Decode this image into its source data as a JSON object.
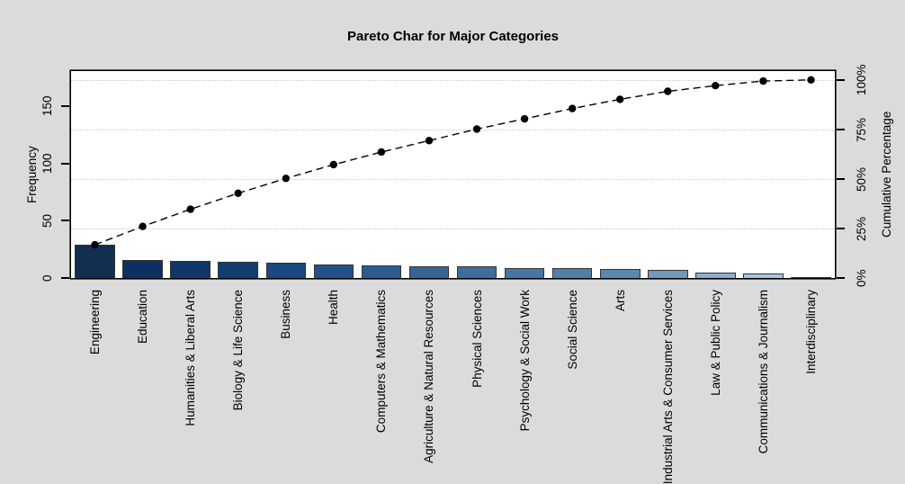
{
  "title": "Pareto Char for Major Categories",
  "axes": {
    "left": {
      "label": "Frequency",
      "ticks": [
        "0",
        "50",
        "100",
        "150"
      ],
      "tick_values": [
        0,
        50,
        100,
        150
      ]
    },
    "right": {
      "label": "Cumulative Percentage",
      "ticks": [
        "0%",
        "25%",
        "50%",
        "75%",
        "100%"
      ],
      "tick_values": [
        0,
        25,
        50,
        75,
        100
      ]
    }
  },
  "chart_data": {
    "type": "pareto (bar + cumulative line)",
    "title": "Pareto Char for Major Categories",
    "categories": [
      "Engineering",
      "Education",
      "Humanities & Liberal Arts",
      "Biology & Life Science",
      "Business",
      "Health",
      "Computers & Mathematics",
      "Agriculture & Natural Resources",
      "Physical Sciences",
      "Psychology & Social Work",
      "Social Science",
      "Arts",
      "Industrial Arts & Consumer Services",
      "Law & Public Policy",
      "Communications & Journalism",
      "Interdisciplinary"
    ],
    "values": [
      29,
      16,
      15,
      14,
      13,
      12,
      11,
      10,
      10,
      9,
      9,
      8,
      7,
      5,
      4,
      1
    ],
    "cumulative_counts": [
      29,
      45,
      60,
      74,
      87,
      99,
      110,
      120,
      130,
      139,
      148,
      156,
      163,
      168,
      172,
      173
    ],
    "cumulative_percent": [
      16.8,
      26.0,
      34.7,
      42.8,
      50.3,
      57.2,
      63.6,
      69.4,
      75.1,
      80.3,
      85.5,
      90.2,
      94.2,
      97.1,
      99.4,
      100.0
    ],
    "total": 173,
    "ylabel_left": "Frequency",
    "ylabel_right": "Cumulative Percentage",
    "ylim_left": [
      0,
      180.7
    ],
    "grid": "dotted horizontal lines at 25%, 50%, 75%, 100% cumulative levels",
    "legend_position": "none",
    "bar_colors": [
      "#122E51",
      "#0E3060",
      "#103767",
      "#143D70",
      "#1A4880",
      "#235289",
      "#2C5B90",
      "#366396",
      "#406D9C",
      "#4975A2",
      "#527EA8",
      "#5C87AE",
      "#7298BB",
      "#8DAFCC",
      "#A9C5DF",
      "#B9D0E7"
    ],
    "line_color": "#000000",
    "point_color": "#000000",
    "line_style": "dashed"
  },
  "colors": {
    "page_bg": "#DBDBDB",
    "plot_bg": "#FFFFFF",
    "grid": "#C9C9C9",
    "box_border": "#000000",
    "bar_border": "#333333"
  }
}
